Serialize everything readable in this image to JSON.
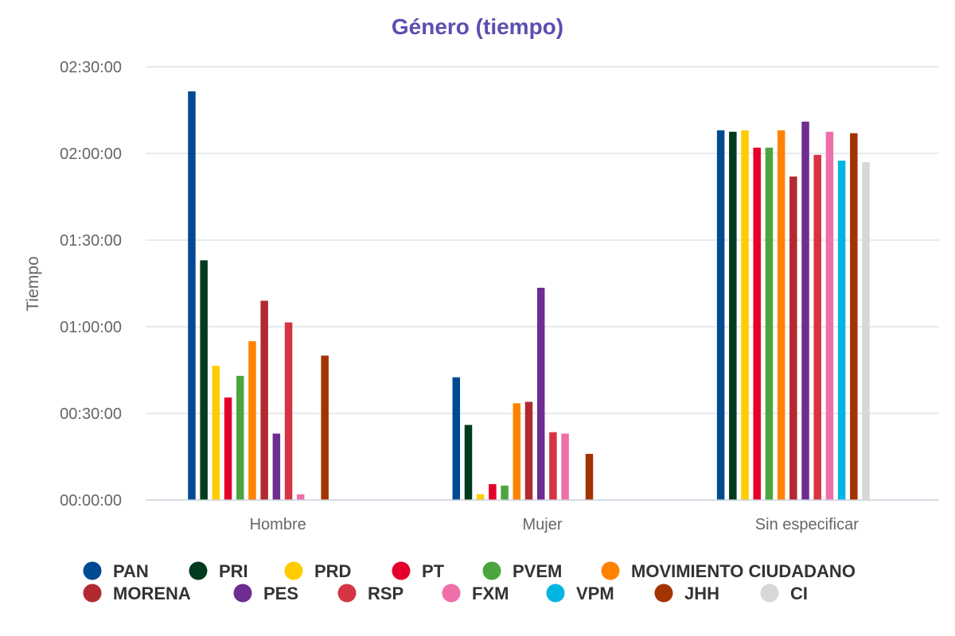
{
  "chart_data": {
    "type": "bar",
    "title": "Género (tiempo)",
    "title_color": "#5b4fb0",
    "xlabel": "",
    "ylabel": "Tiempo",
    "y_unit": "hh:mm:ss",
    "ylim": [
      "00:00:00",
      "02:30:00"
    ],
    "yticks": [
      "00:00:00",
      "00:30:00",
      "01:00:00",
      "01:30:00",
      "02:00:00",
      "02:30:00"
    ],
    "grid": true,
    "legend_position": "bottom",
    "categories": [
      "Hombre",
      "Mujer",
      "Sin especificar"
    ],
    "series": [
      {
        "name": "PAN",
        "color": "#004a93",
        "values": [
          "02:21:30",
          "00:42:30",
          "02:08:00"
        ]
      },
      {
        "name": "PRI",
        "color": "#003b1e",
        "values": [
          "01:23:00",
          "00:26:00",
          "02:07:30"
        ]
      },
      {
        "name": "PRD",
        "color": "#ffcc00",
        "values": [
          "00:46:30",
          "00:02:00",
          "02:08:00"
        ]
      },
      {
        "name": "PT",
        "color": "#e4002b",
        "values": [
          "00:35:30",
          "00:05:30",
          "02:02:00"
        ]
      },
      {
        "name": "PVEM",
        "color": "#4ca43f",
        "values": [
          "00:43:00",
          "00:05:00",
          "02:02:00"
        ]
      },
      {
        "name": "MOVIMIENTO CIUDADANO",
        "color": "#ff8300",
        "values": [
          "00:55:00",
          "00:33:30",
          "02:08:00"
        ]
      },
      {
        "name": "MORENA",
        "color": "#b22a31",
        "values": [
          "01:09:00",
          "00:34:00",
          "01:52:00"
        ]
      },
      {
        "name": "PES",
        "color": "#6f2c91",
        "values": [
          "00:23:00",
          "01:13:30",
          "02:11:00"
        ]
      },
      {
        "name": "RSP",
        "color": "#d63442",
        "values": [
          "01:01:30",
          "00:23:30",
          "01:59:30"
        ]
      },
      {
        "name": "FXM",
        "color": "#ee6faa",
        "values": [
          "00:02:00",
          "00:23:00",
          "02:07:30"
        ]
      },
      {
        "name": "VPM",
        "color": "#00b5e2",
        "values": [
          null,
          null,
          "01:57:30"
        ]
      },
      {
        "name": "JHH",
        "color": "#a33300",
        "values": [
          "00:50:00",
          "00:16:00",
          "02:07:00"
        ]
      },
      {
        "name": "CI",
        "color": "#d8d6d6",
        "values": [
          null,
          null,
          "01:57:00"
        ]
      }
    ]
  }
}
